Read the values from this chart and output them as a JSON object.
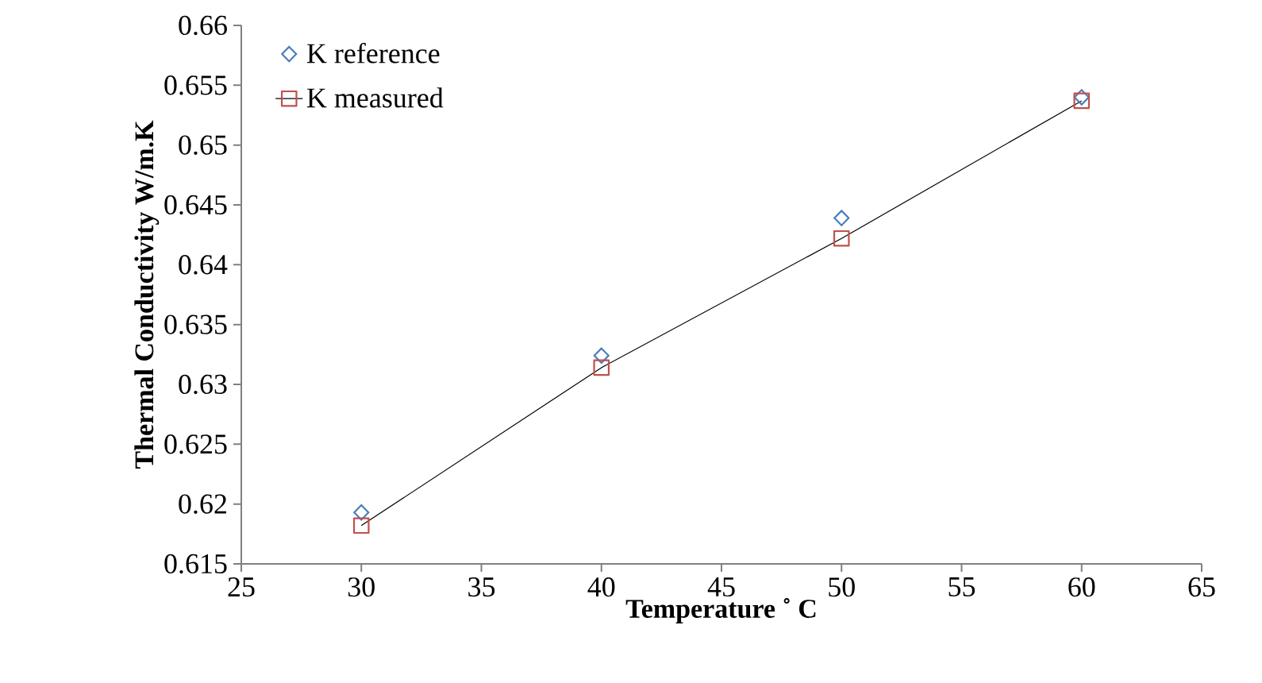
{
  "chart_data": {
    "type": "line",
    "xlabel": "Temperature ˚ C",
    "ylabel": "Thermal Conductivity W/m.K",
    "x": [
      30,
      40,
      50,
      60
    ],
    "series": [
      {
        "name": "K reference",
        "type": "scatter",
        "color": "#4a7ebb",
        "marker": "diamond",
        "values": [
          0.6193,
          0.6324,
          0.6439,
          0.654
        ]
      },
      {
        "name": "K measured",
        "color": "#c0504d",
        "marker": "square",
        "line_style": "solid",
        "values": [
          0.6182,
          0.6314,
          0.6422,
          0.6537
        ]
      }
    ],
    "xlim": [
      25,
      65
    ],
    "xticks": [
      25,
      30,
      35,
      40,
      45,
      50,
      55,
      60,
      65
    ],
    "ylim": [
      0.615,
      0.66
    ],
    "yticks": [
      0.615,
      0.62,
      0.625,
      0.63,
      0.635,
      0.64,
      0.645,
      0.65,
      0.655,
      0.66
    ],
    "legend": "top left"
  }
}
